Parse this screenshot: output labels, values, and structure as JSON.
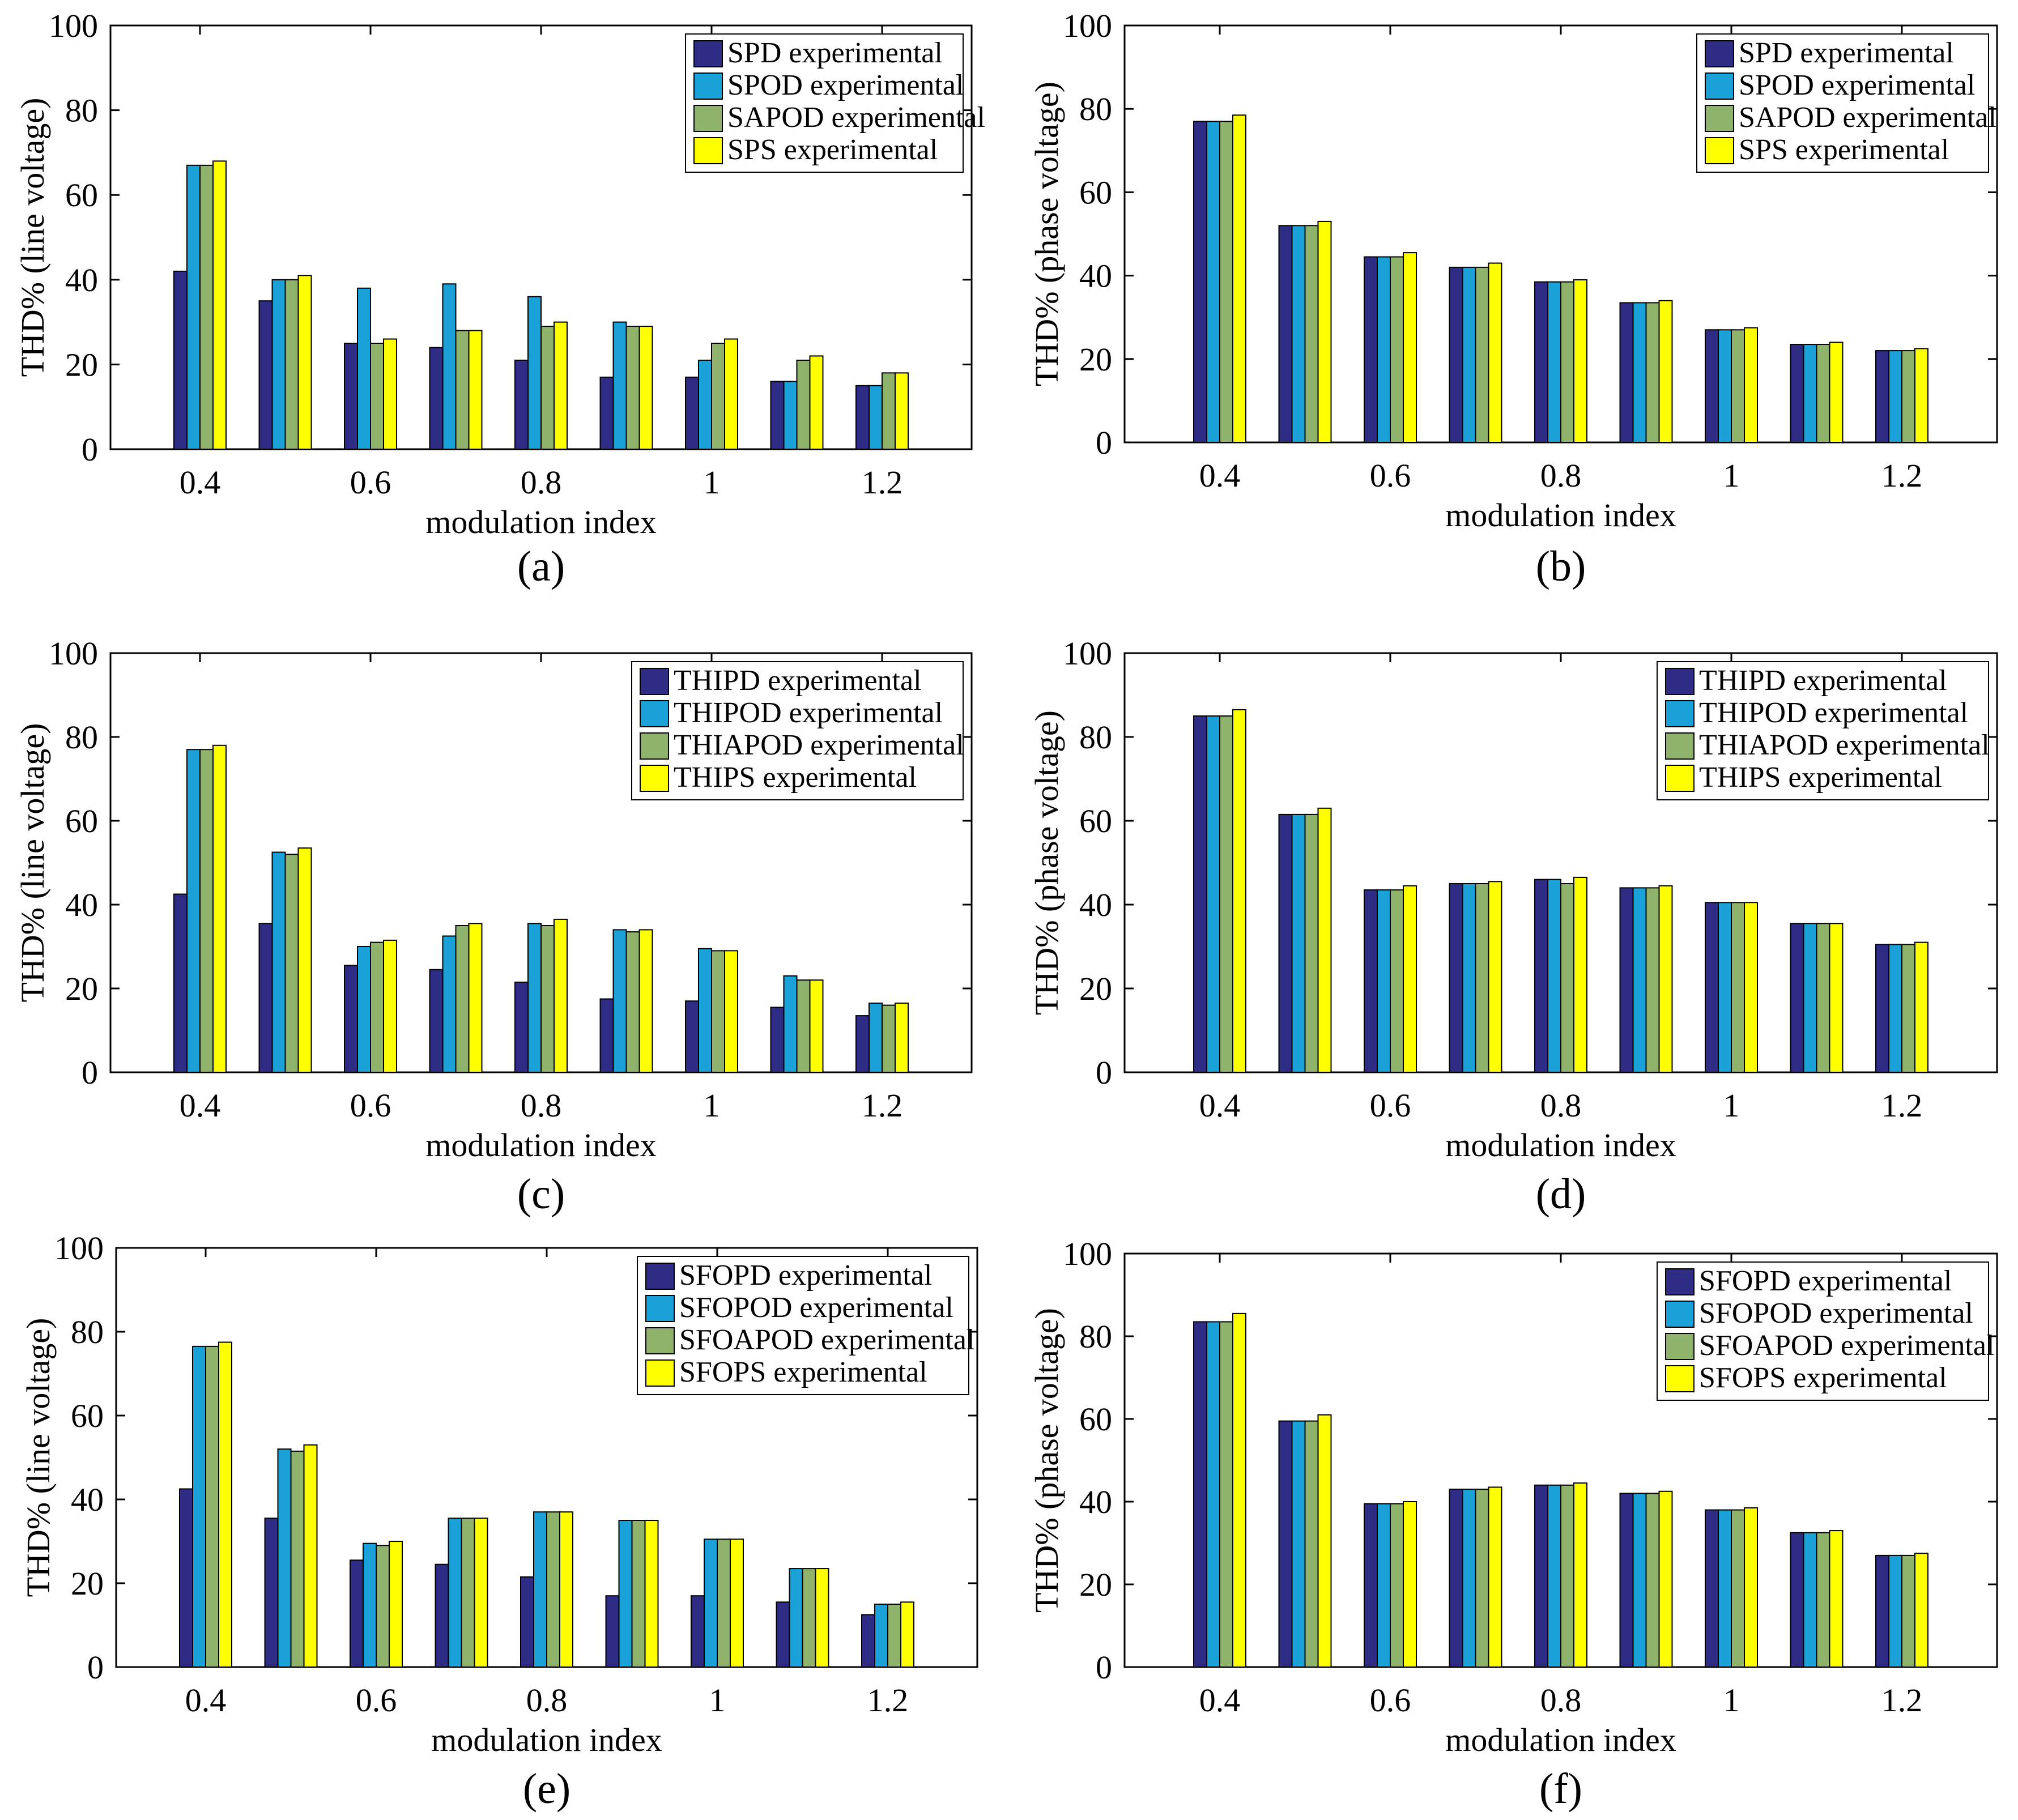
{
  "figure": {
    "panel_labels": [
      "(a)",
      "(b)",
      "(c)",
      "(d)",
      "(e)",
      "(f)"
    ]
  },
  "colors": {
    "series": [
      "#2e2c84",
      "#1aa1d8",
      "#8fb36a",
      "#ffff00"
    ]
  },
  "chart_data": [
    {
      "type": "bar",
      "panel": "(a)",
      "xlabel": "modulation index",
      "ylabel": "THD% (line voltage)",
      "ylim": [
        0,
        100
      ],
      "yticks": [
        0,
        20,
        40,
        60,
        80,
        100
      ],
      "categories": [
        0.4,
        0.5,
        0.6,
        0.7,
        0.8,
        0.9,
        1,
        1.1,
        1.2
      ],
      "xtick_labels": [
        "0.4",
        "0.6",
        "0.8",
        "1",
        "1.2"
      ],
      "legend_position": "top-right",
      "series": [
        {
          "name": "SPD experimental",
          "values": [
            42,
            35,
            25,
            24,
            21,
            17,
            17,
            16,
            15
          ]
        },
        {
          "name": "SPOD experimental",
          "values": [
            67,
            40,
            38,
            39,
            36,
            30,
            21,
            16,
            15
          ]
        },
        {
          "name": "SAPOD experimental",
          "values": [
            67,
            40,
            25,
            28,
            29,
            29,
            25,
            21,
            18
          ]
        },
        {
          "name": "SPS experimental",
          "values": [
            68,
            41,
            26,
            28,
            30,
            29,
            26,
            22,
            18
          ]
        }
      ]
    },
    {
      "type": "bar",
      "panel": "(b)",
      "xlabel": "modulation index",
      "ylabel": "THD% (phase voltage)",
      "ylim": [
        0,
        100
      ],
      "yticks": [
        0,
        20,
        40,
        60,
        80,
        100
      ],
      "categories": [
        0.4,
        0.5,
        0.6,
        0.7,
        0.8,
        0.9,
        1,
        1.1,
        1.2
      ],
      "xtick_labels": [
        "0.4",
        "0.6",
        "0.8",
        "1",
        "1.2"
      ],
      "legend_position": "top-right",
      "series": [
        {
          "name": "SPD experimental",
          "values": [
            77,
            52,
            44.5,
            42,
            38.5,
            33.5,
            27,
            23.5,
            22
          ]
        },
        {
          "name": "SPOD experimental",
          "values": [
            77,
            52,
            44.5,
            42,
            38.5,
            33.5,
            27,
            23.5,
            22
          ]
        },
        {
          "name": "SAPOD experimental",
          "values": [
            77,
            52,
            44.5,
            42,
            38.5,
            33.5,
            27,
            23.5,
            22
          ]
        },
        {
          "name": "SPS experimental",
          "values": [
            78.5,
            53,
            45.5,
            43,
            39,
            34,
            27.5,
            24,
            22.5
          ]
        }
      ]
    },
    {
      "type": "bar",
      "panel": "(c)",
      "xlabel": "modulation index",
      "ylabel": "THD% (line voltage)",
      "ylim": [
        0,
        100
      ],
      "yticks": [
        0,
        20,
        40,
        60,
        80,
        100
      ],
      "categories": [
        0.4,
        0.5,
        0.6,
        0.7,
        0.8,
        0.9,
        1,
        1.1,
        1.2
      ],
      "xtick_labels": [
        "0.4",
        "0.6",
        "0.8",
        "1",
        "1.2"
      ],
      "legend_position": "top-right",
      "series": [
        {
          "name": "THIPD experimental",
          "values": [
            42.5,
            35.5,
            25.5,
            24.5,
            21.5,
            17.5,
            17,
            15.5,
            13.5
          ]
        },
        {
          "name": "THIPOD experimental",
          "values": [
            77,
            52.5,
            30,
            32.5,
            35.5,
            34,
            29.5,
            23,
            16.5
          ]
        },
        {
          "name": "THIAPOD experimental",
          "values": [
            77,
            52,
            31,
            35,
            35,
            33.5,
            29,
            22,
            16
          ]
        },
        {
          "name": "THIPS experimental",
          "values": [
            78,
            53.5,
            31.5,
            35.5,
            36.5,
            34,
            29,
            22,
            16.5
          ]
        }
      ]
    },
    {
      "type": "bar",
      "panel": "(d)",
      "xlabel": "modulation index",
      "ylabel": "THD% (phase voltage)",
      "ylim": [
        0,
        100
      ],
      "yticks": [
        0,
        20,
        40,
        60,
        80,
        100
      ],
      "categories": [
        0.4,
        0.5,
        0.6,
        0.7,
        0.8,
        0.9,
        1,
        1.1,
        1.2
      ],
      "xtick_labels": [
        "0.4",
        "0.6",
        "0.8",
        "1",
        "1.2"
      ],
      "legend_position": "top-right",
      "series": [
        {
          "name": "THIPD experimental",
          "values": [
            85,
            61.5,
            43.5,
            45,
            46,
            44,
            40.5,
            35.5,
            30.5
          ]
        },
        {
          "name": "THIPOD experimental",
          "values": [
            85,
            61.5,
            43.5,
            45,
            46,
            44,
            40.5,
            35.5,
            30.5
          ]
        },
        {
          "name": "THIAPOD experimental",
          "values": [
            85,
            61.5,
            43.5,
            45,
            45,
            44,
            40.5,
            35.5,
            30.5
          ]
        },
        {
          "name": "THIPS experimental",
          "values": [
            86.5,
            63,
            44.5,
            45.5,
            46.5,
            44.5,
            40.5,
            35.5,
            31
          ]
        }
      ]
    },
    {
      "type": "bar",
      "panel": "(e)",
      "xlabel": "modulation index",
      "ylabel": "THD% (line voltage)",
      "ylim": [
        0,
        100
      ],
      "yticks": [
        0,
        20,
        40,
        60,
        80,
        100
      ],
      "categories": [
        0.4,
        0.5,
        0.6,
        0.7,
        0.8,
        0.9,
        1,
        1.1,
        1.2
      ],
      "xtick_labels": [
        "0.4",
        "0.6",
        "0.8",
        "1",
        "1.2"
      ],
      "legend_position": "top-right",
      "series": [
        {
          "name": "SFOPD experimental",
          "values": [
            42.5,
            35.5,
            25.5,
            24.5,
            21.5,
            17,
            17,
            15.5,
            12.5
          ]
        },
        {
          "name": "SFOPOD experimental",
          "values": [
            76.5,
            52,
            29.5,
            35.5,
            37,
            35,
            30.5,
            23.5,
            15
          ]
        },
        {
          "name": "SFOAPOD experimental",
          "values": [
            76.5,
            51.5,
            29,
            35.5,
            37,
            35,
            30.5,
            23.5,
            15
          ]
        },
        {
          "name": "SFOPS experimental",
          "values": [
            77.5,
            53,
            30,
            35.5,
            37,
            35,
            30.5,
            23.5,
            15.5
          ]
        }
      ]
    },
    {
      "type": "bar",
      "panel": "(f)",
      "xlabel": "modulation index",
      "ylabel": "THD% (phase voltage)",
      "ylim": [
        0,
        100
      ],
      "yticks": [
        0,
        20,
        40,
        60,
        80,
        100
      ],
      "categories": [
        0.4,
        0.5,
        0.6,
        0.7,
        0.8,
        0.9,
        1,
        1.1,
        1.2
      ],
      "xtick_labels": [
        "0.4",
        "0.6",
        "0.8",
        "1",
        "1.2"
      ],
      "legend_position": "top-right",
      "series": [
        {
          "name": "SFOPD experimental",
          "values": [
            83.5,
            59.5,
            39.5,
            43,
            44,
            42,
            38,
            32.5,
            27
          ]
        },
        {
          "name": "SFOPOD experimental",
          "values": [
            83.5,
            59.5,
            39.5,
            43,
            44,
            42,
            38,
            32.5,
            27
          ]
        },
        {
          "name": "SFOAPOD experimental",
          "values": [
            83.5,
            59.5,
            39.5,
            43,
            44,
            42,
            38,
            32.5,
            27
          ]
        },
        {
          "name": "SFOPS experimental",
          "values": [
            85.5,
            61,
            40,
            43.5,
            44.5,
            42.5,
            38.5,
            33,
            27.5
          ]
        }
      ]
    }
  ]
}
